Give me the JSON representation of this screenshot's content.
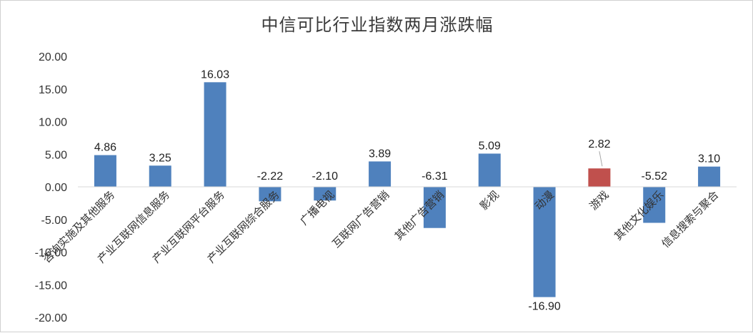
{
  "chart_data": {
    "type": "bar",
    "title": "中信可比行业指数两月涨跌幅",
    "xlabel": "",
    "ylabel": "",
    "categories": [
      "咨询实施及其他服务",
      "产业互联网信息服务",
      "产业互联网平台服务",
      "产业互联网综合服务",
      "广播电视",
      "互联网广告营销",
      "其他广告营销",
      "影视",
      "动漫",
      "游戏",
      "其他文化娱乐",
      "信息搜索与聚合"
    ],
    "values": [
      4.86,
      3.25,
      16.03,
      -2.22,
      -2.1,
      3.89,
      -6.31,
      5.09,
      -16.9,
      2.82,
      -5.52,
      3.1
    ],
    "value_labels": [
      "4.86",
      "3.25",
      "16.03",
      "-2.22",
      "-2.10",
      "3.89",
      "-6.31",
      "5.09",
      "-16.90",
      "2.82",
      "-5.52",
      "3.10"
    ],
    "ylim": [
      -20,
      20
    ],
    "yticks": [
      "20.00",
      "15.00",
      "10.00",
      "5.00",
      "0.00",
      "-5.00",
      "-10.00",
      "-15.00",
      "-20.00"
    ],
    "ytick_values": [
      20,
      15,
      10,
      5,
      0,
      -5,
      -10,
      -15,
      -20
    ],
    "grid": false,
    "legend": "none",
    "colors": {
      "bar": "#4f81bd",
      "highlight": "#c0504d",
      "axis": "#d9d9d9",
      "leader": "#a6a6a6"
    },
    "highlight_index": 9
  }
}
